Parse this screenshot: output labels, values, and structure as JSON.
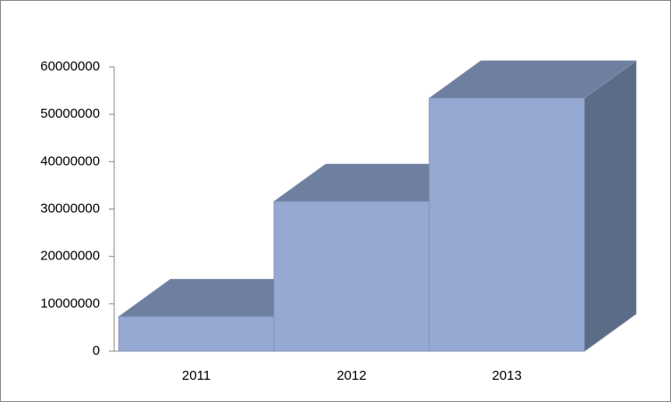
{
  "chart_data": {
    "type": "bar3d",
    "categories": [
      "2011",
      "2012",
      "2013"
    ],
    "values": [
      7300000,
      31600000,
      53400000
    ],
    "color": "#95a9d3",
    "ylim": [
      0,
      60000000
    ],
    "yticks": [
      0,
      10000000,
      20000000,
      30000000,
      40000000,
      50000000,
      60000000
    ]
  }
}
